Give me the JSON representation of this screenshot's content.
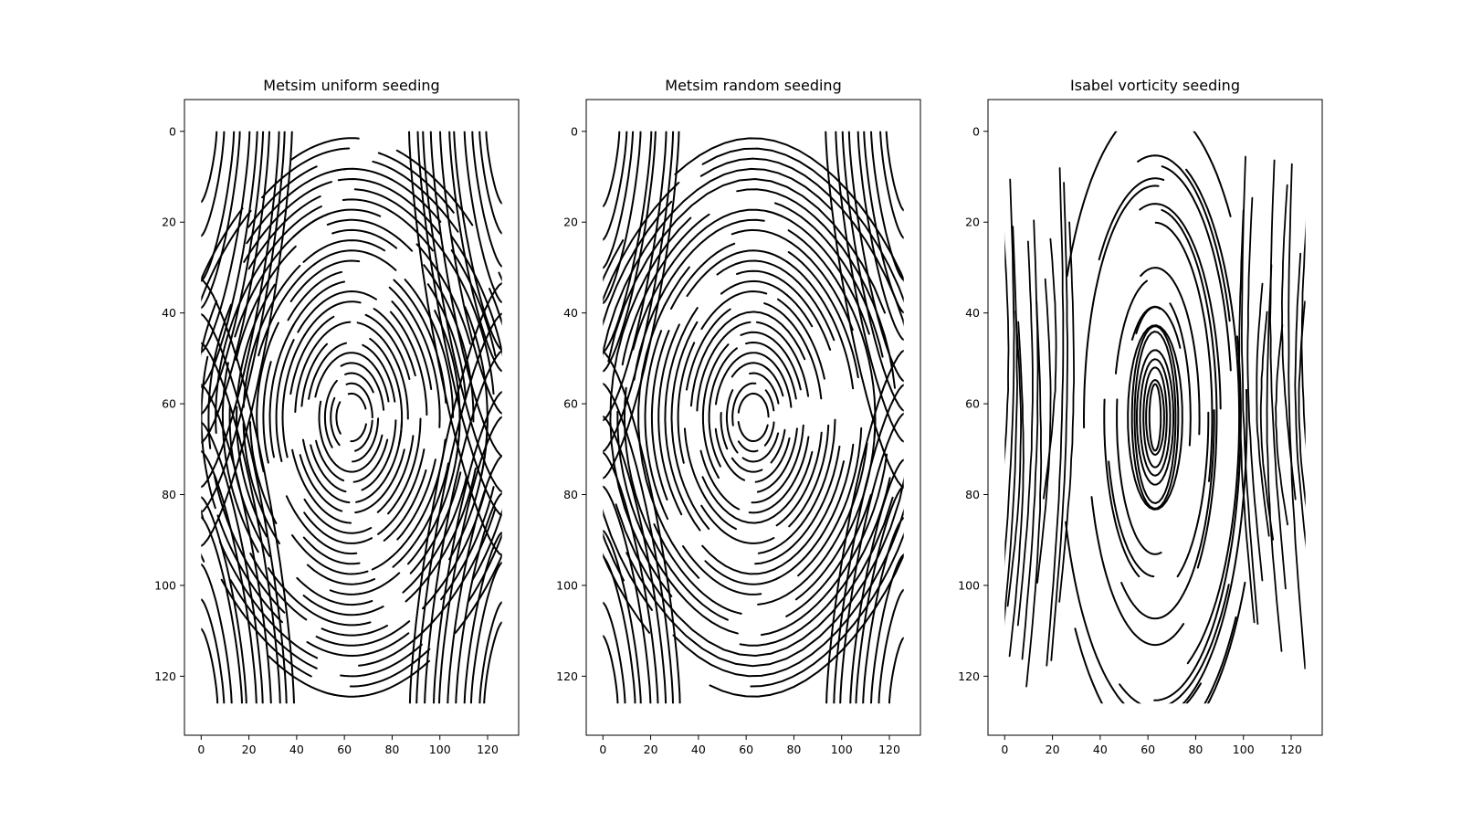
{
  "chart_data": [
    {
      "type": "streamplot",
      "title": "Metsim uniform seeding",
      "xlabel": "",
      "ylabel": "",
      "xlim": [
        -7,
        133
      ],
      "ylim": [
        133,
        -7
      ],
      "y_inverted": true,
      "xticks": [
        0,
        20,
        40,
        60,
        80,
        100,
        120
      ],
      "yticks": [
        0,
        20,
        40,
        60,
        80,
        100,
        120
      ],
      "grid": false,
      "line_color": "#000000",
      "vortex_center": [
        63,
        63
      ],
      "seeding": "uniform"
    },
    {
      "type": "streamplot",
      "title": "Metsim random seeding",
      "xlabel": "",
      "ylabel": "",
      "xlim": [
        -7,
        133
      ],
      "ylim": [
        133,
        -7
      ],
      "y_inverted": true,
      "xticks": [
        0,
        20,
        40,
        60,
        80,
        100,
        120
      ],
      "yticks": [
        0,
        20,
        40,
        60,
        80,
        100,
        120
      ],
      "grid": false,
      "line_color": "#000000",
      "vortex_center": [
        63,
        63
      ],
      "seeding": "random"
    },
    {
      "type": "streamplot",
      "title": "Isabel vorticity seeding",
      "xlabel": "",
      "ylabel": "",
      "xlim": [
        -7,
        133
      ],
      "ylim": [
        133,
        -7
      ],
      "y_inverted": true,
      "xticks": [
        0,
        20,
        40,
        60,
        80,
        100,
        120
      ],
      "yticks": [
        0,
        20,
        40,
        60,
        80,
        100,
        120
      ],
      "grid": false,
      "line_color": "#000000",
      "vortex_center": [
        63,
        63
      ],
      "seeding": "vorticity"
    }
  ]
}
